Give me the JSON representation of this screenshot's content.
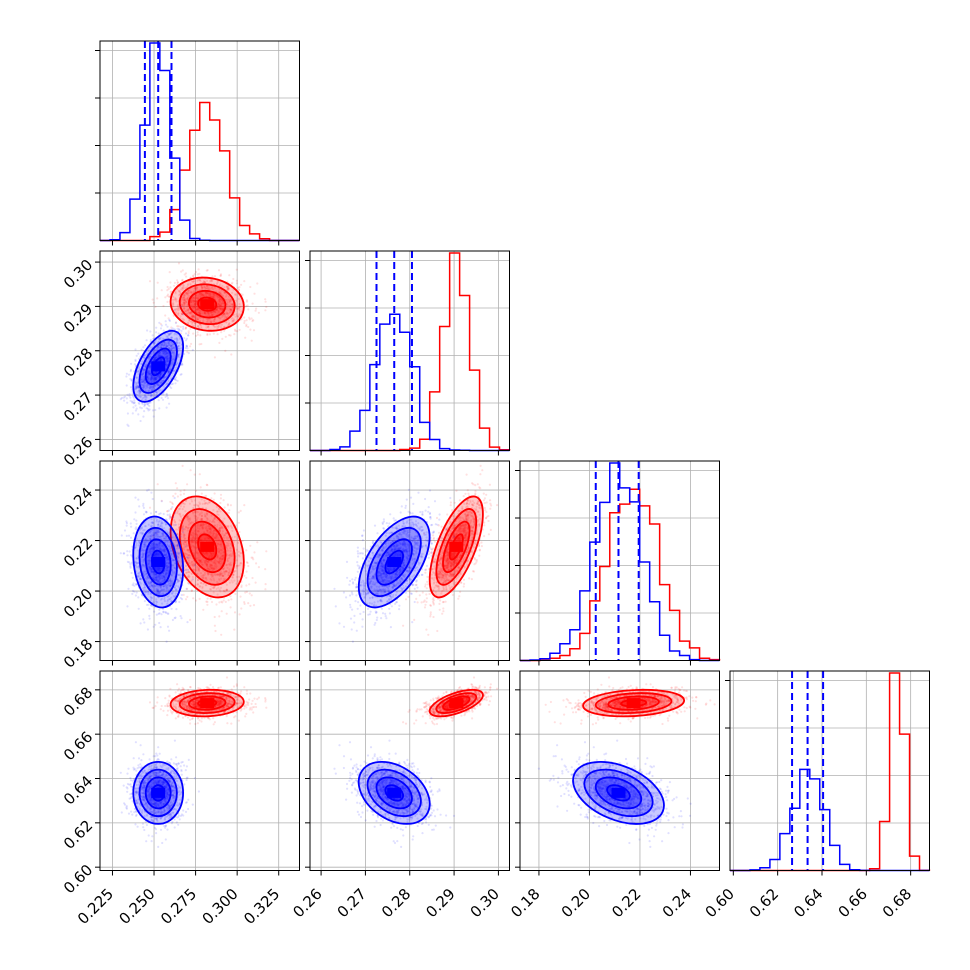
{
  "chart_data": {
    "type": "corner",
    "series": [
      {
        "name": "",
        "color": "#0000ff",
        "mean": [
          0.2525,
          0.2765,
          0.2115,
          0.6335
        ],
        "sd": [
          0.0075,
          0.004,
          0.009,
          0.007
        ],
        "corr": [
          [
            1,
            0.55,
            -0.15,
            0.0
          ],
          [
            0.55,
            1,
            0.55,
            -0.35
          ],
          [
            -0.15,
            0.55,
            1,
            -0.4
          ],
          [
            0.0,
            -0.35,
            -0.4,
            1
          ]
        ],
        "quantiles": [
          [
            0.2445,
            0.2525,
            0.2605
          ],
          [
            0.2725,
            0.2765,
            0.2805
          ],
          [
            0.2025,
            0.2115,
            0.2195
          ],
          [
            0.6265,
            0.6335,
            0.6405
          ]
        ]
      },
      {
        "name": "",
        "color": "#ff0000",
        "mean": [
          0.282,
          0.2905,
          0.2175,
          0.674
        ],
        "sd": [
          0.011,
          0.003,
          0.01,
          0.003
        ],
        "corr": [
          [
            1,
            -0.1,
            -0.3,
            0.1
          ],
          [
            -0.1,
            1,
            0.65,
            0.6
          ],
          [
            -0.3,
            0.65,
            1,
            0.2
          ],
          [
            0.1,
            0.6,
            0.2,
            1
          ]
        ]
      }
    ],
    "axes": [
      {
        "range": [
          0.2175,
          0.3375
        ],
        "ticks": [
          "0.225",
          "0.250",
          "0.275",
          "0.300",
          "0.325"
        ],
        "tick_values": [
          0.225,
          0.25,
          0.275,
          0.3,
          0.325
        ]
      },
      {
        "range": [
          0.2575,
          0.3025
        ],
        "ticks": [
          "0.26",
          "0.27",
          "0.28",
          "0.29",
          "0.30"
        ],
        "tick_values": [
          0.26,
          0.27,
          0.28,
          0.29,
          0.3
        ]
      },
      {
        "range": [
          0.1725,
          0.2515
        ],
        "ticks": [
          "0.18",
          "0.20",
          "0.22",
          "0.24"
        ],
        "tick_values": [
          0.18,
          0.2,
          0.22,
          0.24
        ]
      },
      {
        "range": [
          0.5985,
          0.6885
        ],
        "ticks": [
          "0.60",
          "0.62",
          "0.64",
          "0.66",
          "0.68"
        ],
        "tick_values": [
          0.6,
          0.62,
          0.64,
          0.66,
          0.68
        ]
      }
    ],
    "grid": true,
    "xlabel": "",
    "ylabel": ""
  }
}
